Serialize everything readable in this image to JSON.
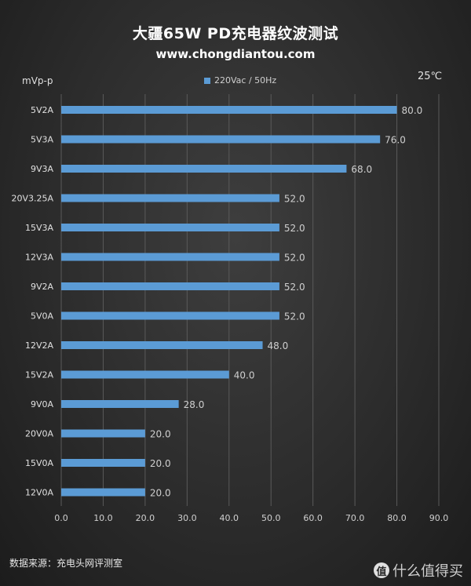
{
  "header": {
    "title": "大疆65W  PD充电器纹波测试",
    "subtitle": "www.chongdiantou.com",
    "unit": "mVp-p",
    "temperature": "25℃"
  },
  "footer": {
    "source": "数据来源：充电头网评测室",
    "watermark_badge": "值",
    "watermark_text": "什么值得买"
  },
  "colors": {
    "bar": "#5b9bd5",
    "grid": "#5a5a5a"
  },
  "chart_data": {
    "type": "bar",
    "orientation": "horizontal",
    "title": "大疆65W  PD充电器纹波测试",
    "ylabel": "mVp-p",
    "categories": [
      "5V2A",
      "5V3A",
      "9V3A",
      "20V3.25A",
      "15V3A",
      "12V3A",
      "9V2A",
      "5V0A",
      "12V2A",
      "15V2A",
      "9V0A",
      "20V0A",
      "15V0A",
      "12V0A"
    ],
    "series": [
      {
        "name": "220Vac / 50Hz",
        "values": [
          80.0,
          76.0,
          68.0,
          52.0,
          52.0,
          52.0,
          52.0,
          52.0,
          48.0,
          40.0,
          28.0,
          20.0,
          20.0,
          20.0
        ],
        "labels": [
          "80.0",
          "76.0",
          "68.0",
          "52.0",
          "52.0",
          "52.0",
          "52.0",
          "52.0",
          "48.0",
          "40.0",
          "28.0",
          "20.0",
          "20.0",
          "20.0"
        ]
      }
    ],
    "xlim": [
      0,
      90
    ],
    "xticks": [
      0,
      10,
      20,
      30,
      40,
      50,
      60,
      70,
      80,
      90
    ],
    "xtick_labels": [
      "0.0",
      "10.0",
      "20.0",
      "30.0",
      "40.0",
      "50.0",
      "60.0",
      "70.0",
      "80.0",
      "90.0"
    ],
    "grid": true,
    "legend_position": "top-center"
  }
}
